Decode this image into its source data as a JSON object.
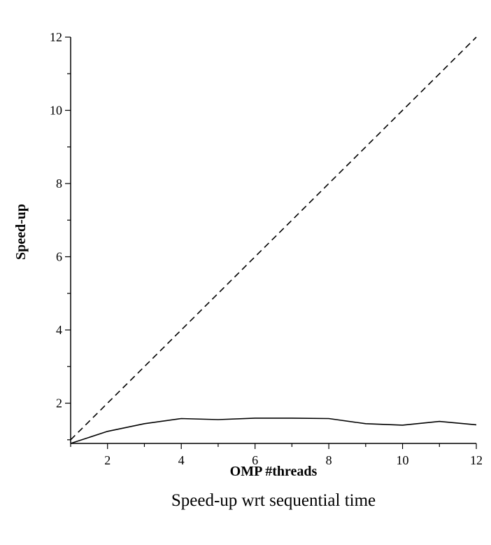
{
  "chart_data": {
    "type": "line",
    "title": "",
    "caption": "Speed-up wrt sequential time",
    "xlabel": "OMP #threads",
    "ylabel": "Speed-up",
    "xlim": [
      1,
      12
    ],
    "ylim": [
      0.9,
      12
    ],
    "x_ticks": [
      2,
      4,
      6,
      8,
      10,
      12
    ],
    "y_ticks": [
      2,
      4,
      6,
      8,
      10,
      12
    ],
    "grid": false,
    "legend": "none",
    "x": [
      1,
      2,
      3,
      4,
      5,
      6,
      7,
      8,
      9,
      10,
      11,
      12
    ],
    "series": [
      {
        "style": "solid",
        "color": "#000000",
        "values": [
          0.9,
          1.23,
          1.44,
          1.58,
          1.55,
          1.59,
          1.59,
          1.58,
          1.44,
          1.4,
          1.5,
          1.41
        ]
      },
      {
        "style": "dashed",
        "color": "#000000",
        "values": [
          1,
          2,
          3,
          4,
          5,
          6,
          7,
          8,
          9,
          10,
          11,
          12
        ]
      }
    ]
  }
}
